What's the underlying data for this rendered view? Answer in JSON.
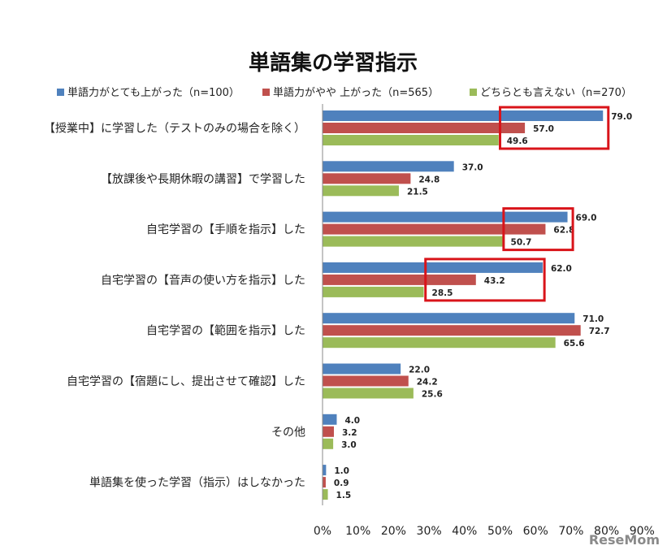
{
  "chart_data": {
    "type": "bar",
    "orientation": "horizontal",
    "title": "単語集の学習指示",
    "categories": [
      "【授業中】に学習した（テストのみの場合を除く）",
      "【放課後や長期休暇の講習】で学習した",
      "自宅学習の【手順を指示】した",
      "自宅学習の【音声の使い方を指示】した",
      "自宅学習の【範囲を指示】した",
      "自宅学習の【宿題にし、提出させて確認】した",
      "その他",
      "単語集を使った学習（指示）はしなかった"
    ],
    "series": [
      {
        "name": "単語力がとても上がった（n=100）",
        "color": "#4f81bd",
        "values": [
          79.0,
          37.0,
          69.0,
          62.0,
          71.0,
          22.0,
          4.0,
          1.0
        ],
        "labels": [
          "79.0",
          "37.0",
          "69.0",
          "62.0",
          "71.0",
          "22.0",
          "4.0",
          "1.0"
        ]
      },
      {
        "name": "単語力がやや 上がった（n=565）",
        "color": "#c0504d",
        "values": [
          57.0,
          24.8,
          62.8,
          43.2,
          72.7,
          24.2,
          3.2,
          0.9
        ],
        "labels": [
          "57.0",
          "24.8",
          "62.8",
          "43.2",
          "72.7",
          "24.2",
          "3.2",
          "0.9"
        ]
      },
      {
        "name": "どちらとも言えない（n=270）",
        "color": "#9bbb59",
        "values": [
          49.6,
          21.5,
          50.7,
          28.5,
          65.6,
          25.6,
          3.0,
          1.5
        ],
        "labels": [
          "49.6",
          "21.5",
          "50.7",
          "28.5",
          "65.6",
          "25.6",
          "3.0",
          "1.5"
        ]
      }
    ],
    "xlim": [
      0,
      90
    ],
    "xticks": [
      "0%",
      "10%",
      "20%",
      "30%",
      "40%",
      "50%",
      "60%",
      "70%",
      "80%",
      "90%"
    ],
    "legend_position": "top",
    "grid": false,
    "highlight_color": "#d9141a",
    "highlights": [
      {
        "category_index": 0,
        "from": 50,
        "to": 80.5
      },
      {
        "category_index": 2,
        "from": 51,
        "to": 70.5
      },
      {
        "category_index": 3,
        "from": 29,
        "to": 62.5
      }
    ]
  },
  "watermark": "ReseMom"
}
